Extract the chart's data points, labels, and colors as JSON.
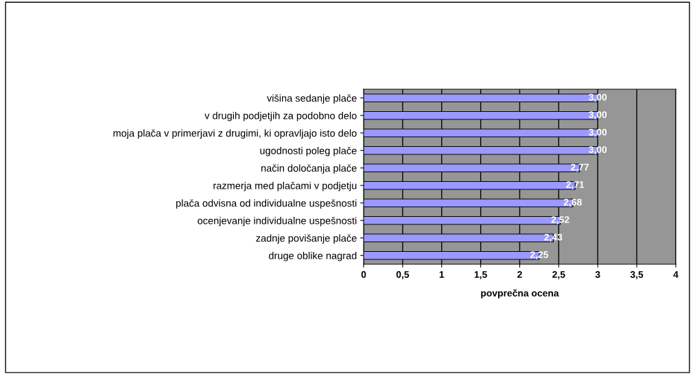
{
  "chart_data": {
    "type": "bar",
    "orientation": "horizontal",
    "xlabel": "povprečna ocena",
    "categories": [
      "višina sedanje plače",
      "v drugih podjetjih za podobno delo",
      "moja plača v primerjavi z drugimi, ki opravljajo isto delo",
      "ugodnosti poleg plače",
      "način določanja plače",
      "razmerja med plačami v podjetju",
      "plača odvisna od individualne uspešnosti",
      "ocenjevanje individualne uspešnosti",
      "zadnje povišanje plače",
      "druge oblike nagrad"
    ],
    "values": [
      3.0,
      3.0,
      3.0,
      3.0,
      2.77,
      2.71,
      2.68,
      2.52,
      2.43,
      2.25
    ],
    "value_labels": [
      "3,00",
      "3,00",
      "3,00",
      "3,00",
      "2,77",
      "2,71",
      "2,68",
      "2,52",
      "2,43",
      "2,25"
    ],
    "color": "#9999ff",
    "xlim": [
      0,
      4
    ],
    "xticks": [
      0,
      {
        "value": 0.5,
        "label": "0,5"
      },
      1,
      {
        "value": 1.5,
        "label": "1,5"
      },
      2,
      {
        "value": 2.5,
        "label": "2,5"
      },
      3,
      {
        "value": 3.5,
        "label": "3,5"
      },
      4
    ],
    "grid": "x",
    "legend": false
  }
}
